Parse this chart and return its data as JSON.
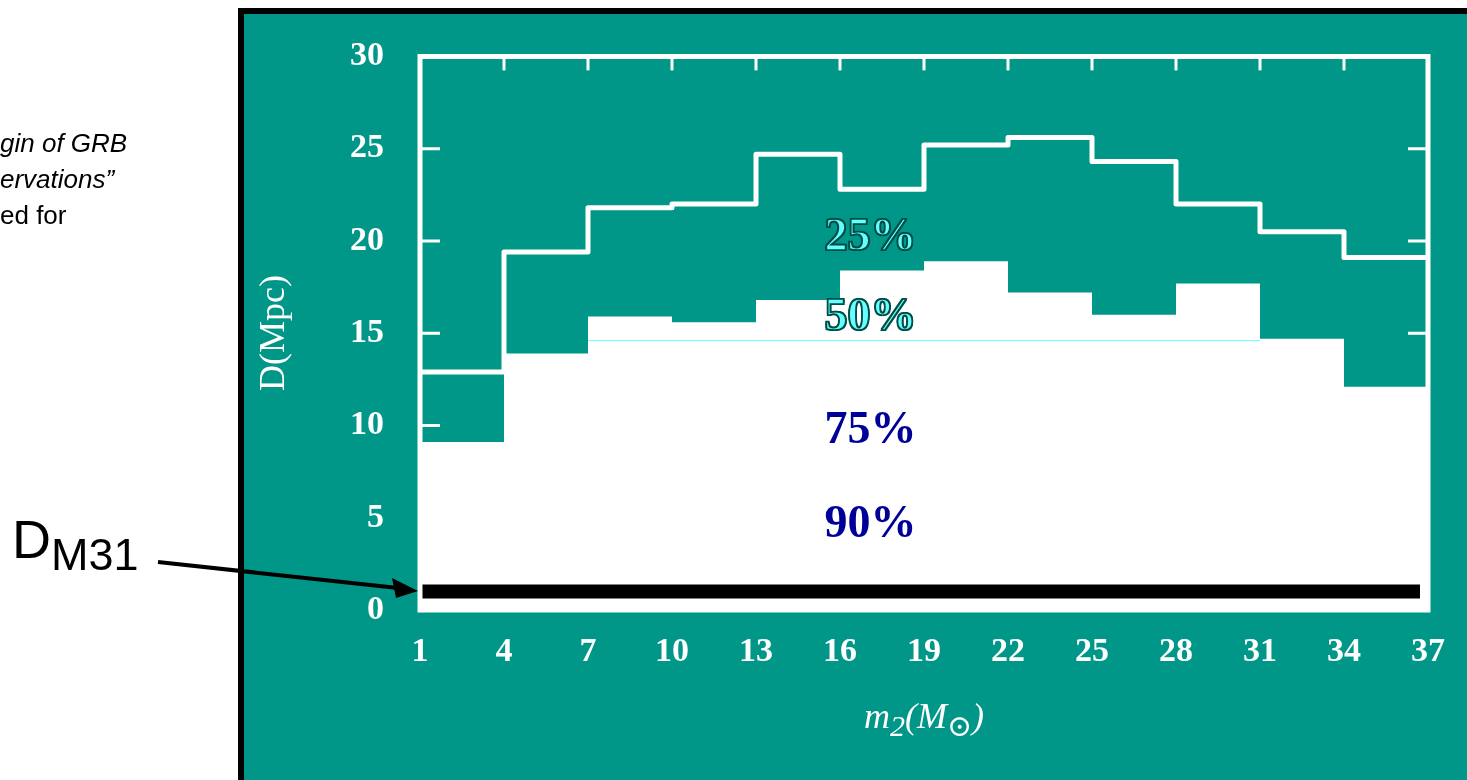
{
  "chart_data": {
    "type": "step",
    "xlabel": "m$_{2}$(M$_{⊙}$)",
    "ylabel": "D(Mpc)",
    "xlim": [
      1,
      37
    ],
    "xticks": [
      1,
      4,
      7,
      10,
      13,
      16,
      19,
      22,
      25,
      28,
      31,
      34,
      37
    ],
    "ylim": [
      0,
      30
    ],
    "yticks": [
      0,
      5,
      10,
      15,
      20,
      25,
      30
    ],
    "grid": false,
    "legend": false,
    "series": [
      {
        "type": "step",
        "color": "#ffffff",
        "x": [
          1,
          4,
          7,
          10,
          13,
          16,
          19,
          22,
          25,
          28,
          31,
          34,
          37
        ],
        "values": [
          12.9,
          19.4,
          21.8,
          22.0,
          24.7,
          22.8,
          25.2,
          25.6,
          24.3,
          22.0,
          20.5,
          19.1,
          19.1
        ]
      },
      {
        "type": "area",
        "color": "#ffffff",
        "x": [
          1,
          4,
          7,
          10,
          13,
          16,
          19,
          22,
          25,
          28,
          31,
          34,
          37
        ],
        "values": [
          9.1,
          13.9,
          15.9,
          15.6,
          16.8,
          18.4,
          18.9,
          17.2,
          16.0,
          17.7,
          14.7,
          12.1,
          12.1
        ]
      },
      {
        "type": "line",
        "color": "#66ffff",
        "x": [
          7,
          31
        ],
        "values": [
          14.6,
          14.6
        ]
      }
    ],
    "ref_lines": [
      {
        "axis": "y",
        "value": 1,
        "label": "D$_{M31}$",
        "color": "#000000"
      }
    ],
    "annotations": [
      "25%",
      "50%",
      "75%",
      "90%",
      "gin of GRB",
      "ervations”",
      "ed for"
    ]
  }
}
